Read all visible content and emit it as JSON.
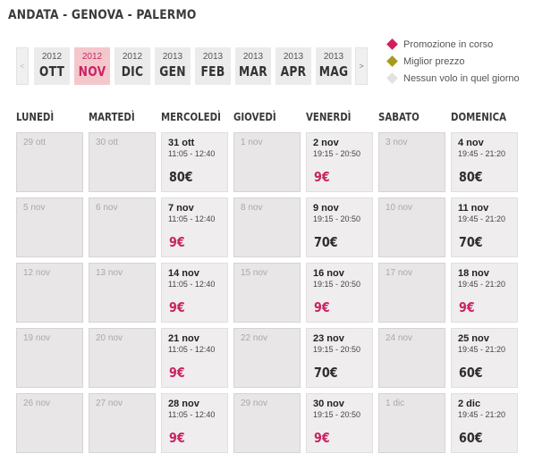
{
  "title": "ANDATA - GENOVA - PALERMO",
  "nav": {
    "prev": "<",
    "next": ">"
  },
  "months": [
    {
      "year": "2012",
      "month": "OTT",
      "active": false
    },
    {
      "year": "2012",
      "month": "NOV",
      "active": true
    },
    {
      "year": "2012",
      "month": "DIC",
      "active": false
    },
    {
      "year": "2013",
      "month": "GEN",
      "active": false
    },
    {
      "year": "2013",
      "month": "FEB",
      "active": false
    },
    {
      "year": "2013",
      "month": "MAR",
      "active": false
    },
    {
      "year": "2013",
      "month": "APR",
      "active": false
    },
    {
      "year": "2013",
      "month": "MAG",
      "active": false
    }
  ],
  "legend": [
    {
      "label": "Promozione in corso",
      "color": "#d21f5a"
    },
    {
      "label": "Miglior prezzo",
      "color": "#a89a1c"
    },
    {
      "label": "Nessun volo in quel giorno",
      "color": "#e4e1e1"
    }
  ],
  "days": [
    "LUNEDÌ",
    "MARTEDÌ",
    "MERCOLEDÌ",
    "GIOVEDÌ",
    "VENERDÌ",
    "SABATO",
    "DOMENICA"
  ],
  "weeks": [
    [
      {
        "date": "29 ott"
      },
      {
        "date": "30 ott"
      },
      {
        "date": "31 ott",
        "time": "11:05 - 12:40",
        "price": "80€",
        "promo": false
      },
      {
        "date": "1 nov"
      },
      {
        "date": "2 nov",
        "time": "19:15 - 20:50",
        "price": "9€",
        "promo": true
      },
      {
        "date": "3 nov"
      },
      {
        "date": "4 nov",
        "time": "19:45 - 21:20",
        "price": "80€",
        "promo": false
      }
    ],
    [
      {
        "date": "5 nov"
      },
      {
        "date": "6 nov"
      },
      {
        "date": "7 nov",
        "time": "11:05 - 12:40",
        "price": "9€",
        "promo": true
      },
      {
        "date": "8 nov"
      },
      {
        "date": "9 nov",
        "time": "19:15 - 20:50",
        "price": "70€",
        "promo": false
      },
      {
        "date": "10 nov"
      },
      {
        "date": "11 nov",
        "time": "19:45 - 21:20",
        "price": "70€",
        "promo": false
      }
    ],
    [
      {
        "date": "12 nov"
      },
      {
        "date": "13 nov"
      },
      {
        "date": "14 nov",
        "time": "11:05 - 12:40",
        "price": "9€",
        "promo": true
      },
      {
        "date": "15 nov"
      },
      {
        "date": "16 nov",
        "time": "19:15 - 20:50",
        "price": "9€",
        "promo": true
      },
      {
        "date": "17 nov"
      },
      {
        "date": "18 nov",
        "time": "19:45 - 21:20",
        "price": "9€",
        "promo": true
      }
    ],
    [
      {
        "date": "19 nov"
      },
      {
        "date": "20 nov"
      },
      {
        "date": "21 nov",
        "time": "11:05 - 12:40",
        "price": "9€",
        "promo": true
      },
      {
        "date": "22 nov"
      },
      {
        "date": "23 nov",
        "time": "19:15 - 20:50",
        "price": "70€",
        "promo": false
      },
      {
        "date": "24 nov"
      },
      {
        "date": "25 nov",
        "time": "19:45 - 21:20",
        "price": "60€",
        "promo": false
      }
    ],
    [
      {
        "date": "26 nov"
      },
      {
        "date": "27 nov"
      },
      {
        "date": "28 nov",
        "time": "11:05 - 12:40",
        "price": "9€",
        "promo": true
      },
      {
        "date": "29 nov"
      },
      {
        "date": "30 nov",
        "time": "19:15 - 20:50",
        "price": "9€",
        "promo": true
      },
      {
        "date": "1 dic"
      },
      {
        "date": "2 dic",
        "time": "19:45 - 21:20",
        "price": "60€",
        "promo": false
      }
    ]
  ]
}
